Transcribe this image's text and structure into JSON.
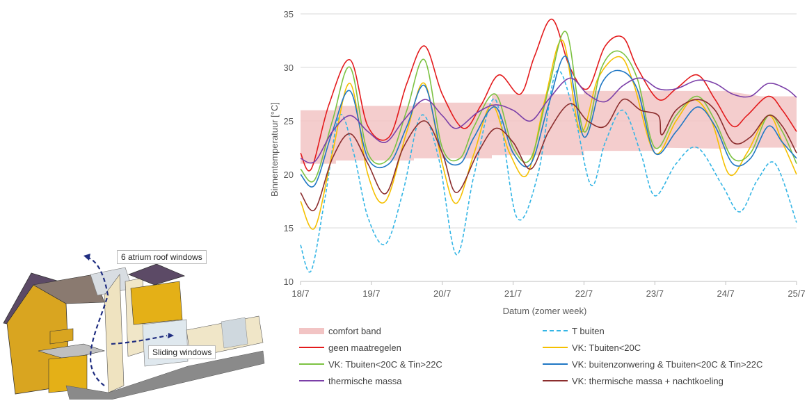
{
  "illustration": {
    "callout_top": "6 atrium roof windows",
    "callout_bottom": "Sliding windows"
  },
  "chart_data": {
    "type": "line",
    "xlabel": "Datum (zomer week)",
    "ylabel": "Binnentemperatuur [°C]",
    "ylim": [
      10,
      35
    ],
    "yticks": [
      10,
      15,
      20,
      25,
      30,
      35
    ],
    "xlim": [
      0,
      7
    ],
    "xticks": [
      0,
      1,
      2,
      3,
      4,
      5,
      6,
      7
    ],
    "xtick_labels": [
      "18/7",
      "19/7",
      "20/7",
      "21/7",
      "22/7",
      "23/7",
      "24/7",
      "25/7"
    ],
    "grid": "horizontal",
    "legend_position": "bottom",
    "band": {
      "name": "comfort band",
      "color": "#f2c4c4",
      "x": [
        0,
        0.5,
        0.5,
        1.6,
        1.6,
        2.7,
        2.7,
        4.0,
        4.0,
        5.0,
        5.0,
        6.0,
        6.5,
        7.0
      ],
      "lower": [
        21.0,
        21.0,
        21.3,
        21.3,
        21.5,
        21.5,
        21.8,
        21.8,
        22.2,
        22.2,
        22.5,
        22.4,
        22.5,
        22.5
      ],
      "upper": [
        26.0,
        26.0,
        26.4,
        26.4,
        26.7,
        26.7,
        27.5,
        27.5,
        27.8,
        27.8,
        27.8,
        27.8,
        27.3,
        27.3
      ]
    },
    "series": [
      {
        "name": "T buiten",
        "color": "#33b5e5",
        "dash": true,
        "x": [
          0,
          0.15,
          0.35,
          0.55,
          0.75,
          0.95,
          1.2,
          1.45,
          1.7,
          1.95,
          2.2,
          2.45,
          2.75,
          3.05,
          3.35,
          3.6,
          3.85,
          4.1,
          4.3,
          4.55,
          4.8,
          5.0,
          5.3,
          5.6,
          5.95,
          6.2,
          6.45,
          6.7,
          7.0
        ],
        "y": [
          13.4,
          11.0,
          18.0,
          25.5,
          22.0,
          16.0,
          13.5,
          18.5,
          25.5,
          21.5,
          12.5,
          20.0,
          27.0,
          16.0,
          20.0,
          29.5,
          26.0,
          19.0,
          23.0,
          26.0,
          22.0,
          18.0,
          21.0,
          22.5,
          19.0,
          16.5,
          19.5,
          21.0,
          15.5
        ]
      },
      {
        "name": "geen maatregelen",
        "color": "#e31a1c",
        "dash": false,
        "x": [
          0,
          0.15,
          0.4,
          0.7,
          0.95,
          1.25,
          1.5,
          1.75,
          2.0,
          2.3,
          2.55,
          2.8,
          3.1,
          3.3,
          3.55,
          3.8,
          4.05,
          4.3,
          4.55,
          4.75,
          5.05,
          5.3,
          5.6,
          5.85,
          6.1,
          6.3,
          6.6,
          6.8,
          7.0
        ],
        "y": [
          22.0,
          20.5,
          26.5,
          30.7,
          24.5,
          23.5,
          28.5,
          32.0,
          27.5,
          24.3,
          26.5,
          29.3,
          27.5,
          31.0,
          34.5,
          30.0,
          28.0,
          32.0,
          32.8,
          30.0,
          27.0,
          28.0,
          29.3,
          27.0,
          24.5,
          25.5,
          27.3,
          26.0,
          24.0
        ]
      },
      {
        "name": "VK: Tbuiten<20C",
        "color": "#f5c000",
        "dash": false,
        "x": [
          0,
          0.2,
          0.45,
          0.7,
          0.95,
          1.2,
          1.5,
          1.75,
          2.0,
          2.2,
          2.45,
          2.7,
          2.95,
          3.2,
          3.45,
          3.7,
          3.95,
          4.2,
          4.5,
          4.7,
          5.0,
          5.3,
          5.55,
          5.8,
          6.05,
          6.3,
          6.6,
          6.8,
          7.0
        ],
        "y": [
          17.5,
          15.0,
          22.0,
          28.5,
          20.0,
          17.5,
          24.0,
          28.5,
          21.0,
          17.3,
          22.0,
          26.5,
          22.0,
          20.0,
          27.0,
          32.5,
          24.0,
          29.0,
          31.0,
          28.5,
          22.0,
          25.0,
          27.0,
          25.0,
          20.0,
          22.0,
          25.5,
          23.0,
          20.0
        ]
      },
      {
        "name": "VK: Tbuiten<20C & Tin>22C",
        "color": "#7cc242",
        "dash": false,
        "x": [
          0,
          0.2,
          0.45,
          0.7,
          0.95,
          1.25,
          1.5,
          1.75,
          2.0,
          2.25,
          2.45,
          2.75,
          3.0,
          3.25,
          3.5,
          3.75,
          4.0,
          4.25,
          4.5,
          4.75,
          5.0,
          5.3,
          5.6,
          5.85,
          6.1,
          6.35,
          6.6,
          6.8,
          7.0
        ],
        "y": [
          20.5,
          19.5,
          25.0,
          30.0,
          22.0,
          21.5,
          26.0,
          30.7,
          22.5,
          21.5,
          24.5,
          27.5,
          22.5,
          21.5,
          28.0,
          33.3,
          24.0,
          30.0,
          31.5,
          29.0,
          22.5,
          25.5,
          27.3,
          25.0,
          21.5,
          22.0,
          25.5,
          24.0,
          21.0
        ]
      },
      {
        "name": "VK: buitenzonwering & Tbuiten<20C & Tin>22C",
        "color": "#1f77c4",
        "dash": false,
        "x": [
          0,
          0.2,
          0.45,
          0.7,
          0.95,
          1.25,
          1.5,
          1.75,
          2.0,
          2.25,
          2.45,
          2.75,
          3.0,
          3.25,
          3.5,
          3.75,
          4.0,
          4.25,
          4.5,
          4.75,
          5.0,
          5.3,
          5.6,
          5.85,
          6.1,
          6.35,
          6.6,
          6.8,
          7.0
        ],
        "y": [
          20.0,
          19.0,
          24.0,
          27.8,
          21.5,
          21.0,
          24.5,
          28.3,
          22.0,
          21.0,
          23.5,
          26.3,
          22.0,
          21.0,
          26.5,
          31.0,
          23.5,
          28.5,
          29.7,
          28.0,
          22.0,
          24.0,
          26.3,
          24.5,
          21.0,
          21.5,
          24.5,
          23.0,
          21.5
        ]
      },
      {
        "name": "thermische massa",
        "color": "#7b3fa8",
        "dash": false,
        "x": [
          0,
          0.2,
          0.45,
          0.7,
          0.95,
          1.2,
          1.45,
          1.75,
          2.0,
          2.2,
          2.5,
          2.75,
          3.0,
          3.25,
          3.5,
          3.8,
          4.05,
          4.3,
          4.55,
          4.8,
          5.05,
          5.3,
          5.6,
          5.85,
          6.1,
          6.35,
          6.6,
          6.85,
          7.0
        ],
        "y": [
          21.5,
          21.2,
          24.0,
          25.5,
          24.0,
          23.0,
          25.0,
          27.0,
          25.5,
          24.3,
          25.8,
          26.5,
          26.0,
          25.0,
          27.0,
          29.0,
          27.5,
          26.8,
          28.3,
          29.0,
          28.0,
          28.0,
          28.8,
          28.5,
          27.5,
          27.3,
          28.5,
          28.0,
          27.2
        ]
      },
      {
        "name": "VK: thermische massa + nachtkoeling",
        "color": "#8b2d2d",
        "dash": false,
        "x": [
          0,
          0.2,
          0.45,
          0.7,
          0.95,
          1.2,
          1.45,
          1.75,
          2.0,
          2.2,
          2.5,
          2.75,
          3.0,
          3.25,
          3.5,
          3.8,
          4.05,
          4.3,
          4.55,
          4.8,
          5.05,
          5.1,
          5.3,
          5.6,
          5.85,
          6.1,
          6.35,
          6.6,
          6.8,
          7.0
        ],
        "y": [
          18.3,
          16.7,
          21.5,
          23.8,
          21.0,
          18.2,
          22.5,
          25.0,
          22.0,
          18.3,
          22.0,
          24.3,
          23.0,
          20.5,
          24.0,
          26.6,
          25.0,
          24.5,
          27.0,
          26.0,
          25.5,
          23.7,
          26.0,
          27.0,
          26.0,
          23.0,
          23.5,
          25.5,
          24.5,
          22.0
        ]
      }
    ]
  }
}
